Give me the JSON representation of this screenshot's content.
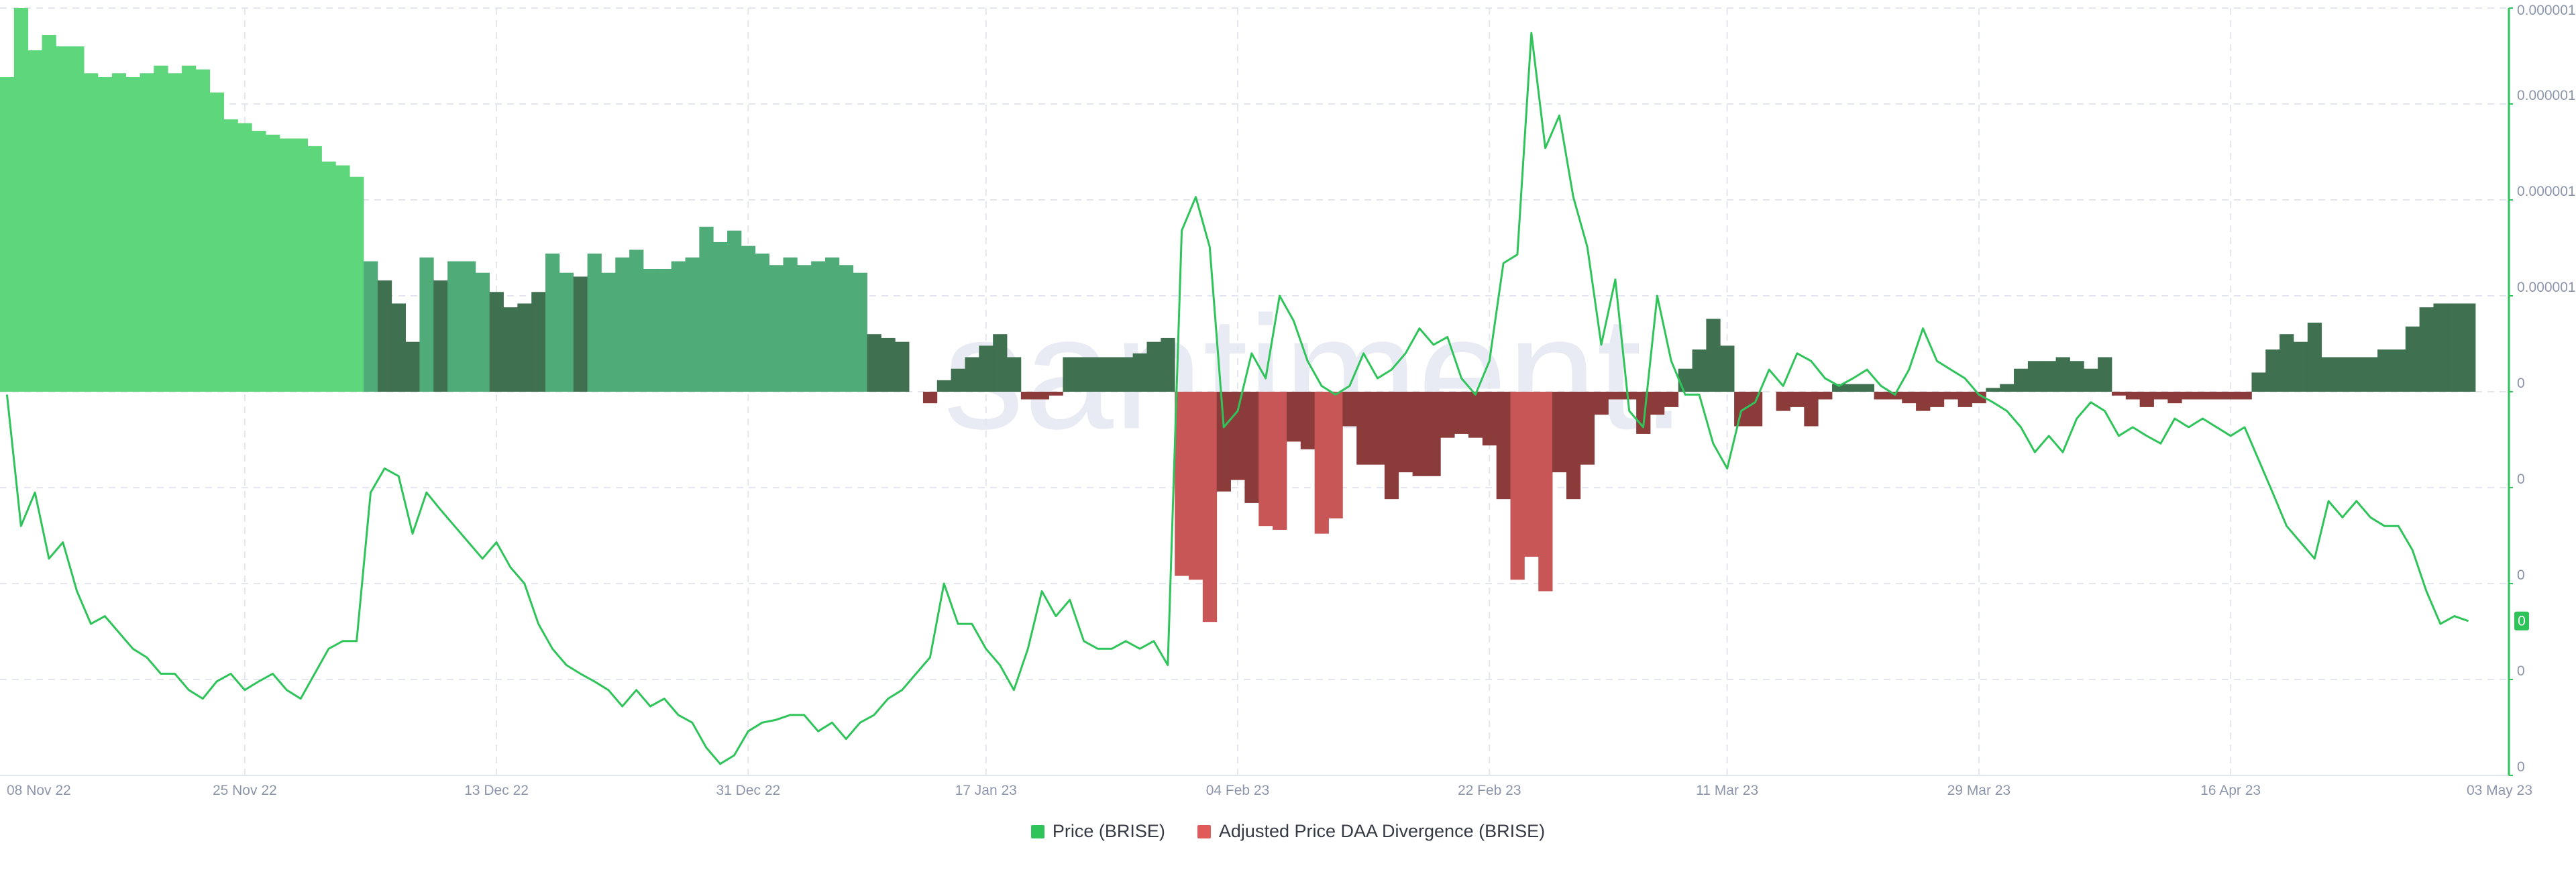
{
  "chart_data": {
    "type": "bar-line",
    "watermark": "santiment.",
    "last_value_label": "0",
    "categories": [
      "08 Nov 22",
      "09 Nov 22",
      "10 Nov 22",
      "11 Nov 22",
      "12 Nov 22",
      "13 Nov 22",
      "14 Nov 22",
      "15 Nov 22",
      "16 Nov 22",
      "17 Nov 22",
      "18 Nov 22",
      "19 Nov 22",
      "20 Nov 22",
      "21 Nov 22",
      "22 Nov 22",
      "23 Nov 22",
      "24 Nov 22",
      "25 Nov 22",
      "26 Nov 22",
      "27 Nov 22",
      "28 Nov 22",
      "29 Nov 22",
      "30 Nov 22",
      "01 Dec 22",
      "02 Dec 22",
      "03 Dec 22",
      "04 Dec 22",
      "05 Dec 22",
      "06 Dec 22",
      "07 Dec 22",
      "08 Dec 22",
      "09 Dec 22",
      "10 Dec 22",
      "11 Dec 22",
      "12 Dec 22",
      "13 Dec 22",
      "14 Dec 22",
      "15 Dec 22",
      "16 Dec 22",
      "17 Dec 22",
      "18 Dec 22",
      "19 Dec 22",
      "20 Dec 22",
      "21 Dec 22",
      "22 Dec 22",
      "23 Dec 22",
      "24 Dec 22",
      "25 Dec 22",
      "26 Dec 22",
      "27 Dec 22",
      "28 Dec 22",
      "29 Dec 22",
      "30 Dec 22",
      "31 Dec 22",
      "01 Jan 23",
      "02 Jan 23",
      "03 Jan 23",
      "04 Jan 23",
      "05 Jan 23",
      "06 Jan 23",
      "07 Jan 23",
      "08 Jan 23",
      "09 Jan 23",
      "10 Jan 23",
      "11 Jan 23",
      "12 Jan 23",
      "13 Jan 23",
      "14 Jan 23",
      "15 Jan 23",
      "16 Jan 23",
      "17 Jan 23",
      "18 Jan 23",
      "19 Jan 23",
      "20 Jan 23",
      "21 Jan 23",
      "22 Jan 23",
      "23 Jan 23",
      "24 Jan 23",
      "25 Jan 23",
      "26 Jan 23",
      "27 Jan 23",
      "28 Jan 23",
      "29 Jan 23",
      "30 Jan 23",
      "31 Jan 23",
      "01 Feb 23",
      "02 Feb 23",
      "03 Feb 23",
      "04 Feb 23",
      "05 Feb 23",
      "06 Feb 23",
      "07 Feb 23",
      "08 Feb 23",
      "09 Feb 23",
      "10 Feb 23",
      "11 Feb 23",
      "12 Feb 23",
      "13 Feb 23",
      "14 Feb 23",
      "15 Feb 23",
      "16 Feb 23",
      "17 Feb 23",
      "18 Feb 23",
      "19 Feb 23",
      "20 Feb 23",
      "21 Feb 23",
      "22 Feb 23",
      "23 Feb 23",
      "24 Feb 23",
      "25 Feb 23",
      "26 Feb 23",
      "27 Feb 23",
      "28 Feb 23",
      "01 Mar 23",
      "02 Mar 23",
      "03 Mar 23",
      "04 Mar 23",
      "05 Mar 23",
      "06 Mar 23",
      "07 Mar 23",
      "08 Mar 23",
      "09 Mar 23",
      "10 Mar 23",
      "11 Mar 23",
      "12 Mar 23",
      "13 Mar 23",
      "14 Mar 23",
      "15 Mar 23",
      "16 Mar 23",
      "17 Mar 23",
      "18 Mar 23",
      "19 Mar 23",
      "20 Mar 23",
      "21 Mar 23",
      "22 Mar 23",
      "23 Mar 23",
      "24 Mar 23",
      "25 Mar 23",
      "26 Mar 23",
      "27 Mar 23",
      "28 Mar 23",
      "29 Mar 23",
      "30 Mar 23",
      "31 Mar 23",
      "01 Apr 23",
      "02 Apr 23",
      "03 Apr 23",
      "04 Apr 23",
      "05 Apr 23",
      "06 Apr 23",
      "07 Apr 23",
      "08 Apr 23",
      "09 Apr 23",
      "10 Apr 23",
      "11 Apr 23",
      "12 Apr 23",
      "13 Apr 23",
      "14 Apr 23",
      "15 Apr 23",
      "16 Apr 23",
      "17 Apr 23",
      "18 Apr 23",
      "19 Apr 23",
      "20 Apr 23",
      "21 Apr 23",
      "22 Apr 23",
      "23 Apr 23",
      "24 Apr 23",
      "25 Apr 23",
      "26 Apr 23",
      "27 Apr 23",
      "28 Apr 23",
      "29 Apr 23",
      "30 Apr 23",
      "01 May 23",
      "02 May 23",
      "03 May 23"
    ],
    "xticks": [
      "08 Nov 22",
      "25 Nov 22",
      "13 Dec 22",
      "31 Dec 22",
      "17 Jan 23",
      "04 Feb 23",
      "22 Feb 23",
      "11 Mar 23",
      "29 Mar 23",
      "16 Apr 23",
      "03 May 23"
    ],
    "ylim": [
      0,
      8e-07
    ],
    "yticks": [
      {
        "value": 8e-07,
        "label": "0.000001"
      },
      {
        "value": 7e-07,
        "label": "0.000001"
      },
      {
        "value": 6e-07,
        "label": "0.000001"
      },
      {
        "value": 5e-07,
        "label": "0.000001"
      },
      {
        "value": 4e-07,
        "label": "0"
      },
      {
        "value": 3e-07,
        "label": "0"
      },
      {
        "value": 2e-07,
        "label": "0"
      },
      {
        "value": 1e-07,
        "label": "0"
      },
      {
        "value": 0,
        "label": "0"
      }
    ],
    "y2lim": [
      -1,
      1
    ],
    "grid": true,
    "legend": "bottom",
    "series": [
      {
        "name": "Price (BRISE)",
        "type": "line",
        "axis": "y",
        "color": "#2fc45a",
        "values": [
          3.97e-07,
          2.6e-07,
          2.95e-07,
          2.26e-07,
          2.43e-07,
          1.92e-07,
          1.58e-07,
          1.66e-07,
          1.49e-07,
          1.32e-07,
          1.23e-07,
          1.06e-07,
          1.06e-07,
          8.9e-08,
          8e-08,
          9.8e-08,
          1.06e-07,
          8.9e-08,
          9.8e-08,
          1.06e-07,
          8.9e-08,
          8e-08,
          1.06e-07,
          1.32e-07,
          1.4e-07,
          1.4e-07,
          2.95e-07,
          3.2e-07,
          3.12e-07,
          2.52e-07,
          2.95e-07,
          2.77e-07,
          2.6e-07,
          2.43e-07,
          2.26e-07,
          2.43e-07,
          2.17e-07,
          2e-07,
          1.58e-07,
          1.32e-07,
          1.15e-07,
          1.06e-07,
          9.8e-08,
          8.9e-08,
          7.2e-08,
          8.9e-08,
          7.2e-08,
          8e-08,
          6.3e-08,
          5.5e-08,
          2.9e-08,
          1.2e-08,
          2.1e-08,
          4.6e-08,
          5.5e-08,
          5.8e-08,
          6.3e-08,
          6.3e-08,
          4.6e-08,
          5.5e-08,
          3.8e-08,
          5.5e-08,
          6.3e-08,
          8e-08,
          8.9e-08,
          1.06e-07,
          1.23e-07,
          2e-07,
          1.58e-07,
          1.58e-07,
          1.32e-07,
          1.15e-07,
          8.9e-08,
          1.32e-07,
          1.92e-07,
          1.66e-07,
          1.83e-07,
          1.4e-07,
          1.32e-07,
          1.32e-07,
          1.4e-07,
          1.32e-07,
          1.4e-07,
          1.15e-07,
          5.68e-07,
          6.03e-07,
          5.51e-07,
          3.63e-07,
          3.8e-07,
          4.4e-07,
          4.14e-07,
          5e-07,
          4.74e-07,
          4.32e-07,
          4.06e-07,
          3.97e-07,
          4.06e-07,
          4.4e-07,
          4.14e-07,
          4.23e-07,
          4.4e-07,
          4.66e-07,
          4.49e-07,
          4.57e-07,
          4.14e-07,
          3.97e-07,
          4.32e-07,
          5.34e-07,
          5.43e-07,
          7.74e-07,
          6.54e-07,
          6.88e-07,
          6.03e-07,
          5.51e-07,
          4.49e-07,
          5.17e-07,
          3.8e-07,
          3.63e-07,
          5e-07,
          4.32e-07,
          3.97e-07,
          3.97e-07,
          3.46e-07,
          3.2e-07,
          3.8e-07,
          3.89e-07,
          4.23e-07,
          4.06e-07,
          4.4e-07,
          4.32e-07,
          4.14e-07,
          4.06e-07,
          4.14e-07,
          4.23e-07,
          4.06e-07,
          3.97e-07,
          4.23e-07,
          4.66e-07,
          4.32e-07,
          4.23e-07,
          4.14e-07,
          3.97e-07,
          3.89e-07,
          3.8e-07,
          3.63e-07,
          3.37e-07,
          3.54e-07,
          3.37e-07,
          3.72e-07,
          3.89e-07,
          3.8e-07,
          3.54e-07,
          3.63e-07,
          3.54e-07,
          3.46e-07,
          3.72e-07,
          3.63e-07,
          3.72e-07,
          3.63e-07,
          3.54e-07,
          3.63e-07,
          3.29e-07,
          2.95e-07,
          2.6e-07,
          2.43e-07,
          2.26e-07,
          2.86e-07,
          2.69e-07,
          2.86e-07,
          2.69e-07,
          2.6e-07,
          2.6e-07,
          2.35e-07,
          1.92e-07,
          1.58e-07,
          1.66e-07,
          1.61e-07
        ]
      },
      {
        "name": "Adjusted Price DAA Divergence (BRISE)",
        "type": "bar",
        "axis": "y2",
        "color": "#e05a5a",
        "positive_colors": [
          "#3f7050",
          "#4fab78",
          "#5dd67c"
        ],
        "negative_colors": [
          "#8c3b3b",
          "#c85656"
        ],
        "values": [
          0.82,
          1.0,
          0.89,
          0.93,
          0.9,
          0.9,
          0.83,
          0.82,
          0.83,
          0.82,
          0.83,
          0.85,
          0.83,
          0.85,
          0.84,
          0.78,
          0.71,
          0.7,
          0.68,
          0.67,
          0.66,
          0.66,
          0.64,
          0.6,
          0.59,
          0.56,
          0.34,
          0.29,
          0.23,
          0.13,
          0.35,
          0.29,
          0.34,
          0.34,
          0.31,
          0.26,
          0.22,
          0.23,
          0.26,
          0.36,
          0.31,
          0.3,
          0.36,
          0.31,
          0.35,
          0.37,
          0.32,
          0.32,
          0.34,
          0.35,
          0.43,
          0.39,
          0.42,
          0.38,
          0.36,
          0.33,
          0.35,
          0.33,
          0.34,
          0.35,
          0.33,
          0.31,
          0.15,
          0.14,
          0.13,
          0.0,
          -0.03,
          0.03,
          0.06,
          0.09,
          0.12,
          0.15,
          0.09,
          -0.02,
          -0.02,
          -0.01,
          0.09,
          0.09,
          0.09,
          0.09,
          0.09,
          0.1,
          0.13,
          0.14,
          -0.48,
          -0.49,
          -0.6,
          -0.26,
          -0.23,
          -0.29,
          -0.35,
          -0.36,
          -0.13,
          -0.15,
          -0.37,
          -0.33,
          -0.09,
          -0.19,
          -0.19,
          -0.28,
          -0.21,
          -0.22,
          -0.22,
          -0.12,
          -0.11,
          -0.12,
          -0.14,
          -0.28,
          -0.49,
          -0.43,
          -0.52,
          -0.21,
          -0.28,
          -0.19,
          -0.06,
          -0.02,
          -0.02,
          -0.11,
          -0.06,
          -0.04,
          0.06,
          0.11,
          0.19,
          0.12,
          -0.09,
          -0.09,
          0.0,
          -0.05,
          -0.04,
          -0.09,
          -0.02,
          0.02,
          0.02,
          0.02,
          -0.02,
          -0.02,
          -0.03,
          -0.05,
          -0.04,
          -0.02,
          -0.04,
          -0.03,
          0.01,
          0.02,
          0.06,
          0.08,
          0.08,
          0.09,
          0.08,
          0.06,
          0.09,
          -0.01,
          -0.02,
          -0.04,
          -0.02,
          -0.03,
          -0.02,
          -0.02,
          -0.02,
          -0.02,
          -0.02,
          0.05,
          0.11,
          0.15,
          0.13,
          0.18,
          0.09,
          0.09,
          0.09,
          0.09,
          0.11,
          0.11,
          0.17,
          0.22,
          0.23,
          0.23,
          0.23
        ]
      }
    ]
  }
}
